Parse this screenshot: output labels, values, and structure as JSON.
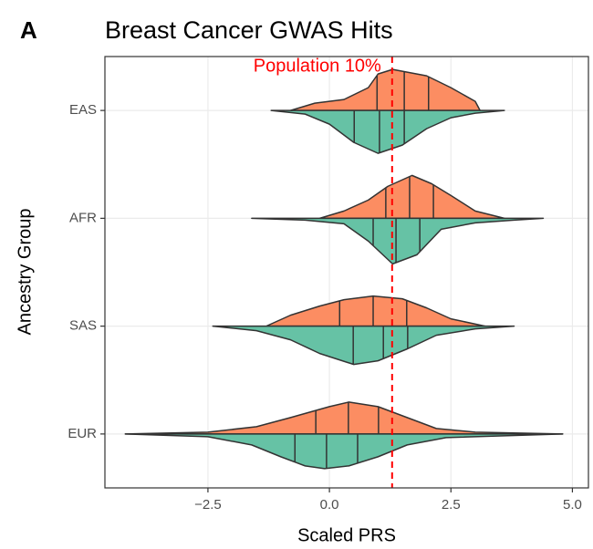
{
  "chart_data": {
    "type": "violin",
    "panel_label": "A",
    "title": "Breast Cancer GWAS Hits",
    "xlabel": "Scaled PRS",
    "ylabel": "Ancestry Group",
    "categories": [
      "EAS",
      "AFR",
      "SAS",
      "EUR"
    ],
    "xlim": [
      -4.62,
      5.33
    ],
    "xticks": [
      {
        "value": -2.5,
        "label": "−2.5"
      },
      {
        "value": 0,
        "label": "0.0"
      },
      2.5,
      {
        "value": 5,
        "label": "5.0"
      }
    ],
    "grid": true,
    "reference_line": {
      "value": 1.29,
      "label": "Population 10%",
      "color": "#ff0000"
    },
    "series": [
      {
        "color": "#fc8d62",
        "side": "upper",
        "groups": [
          {
            "x": [
              -0.8,
              -0.3,
              0.3,
              0.8,
              1.0,
              1.3,
              1.6,
              2.0,
              2.5,
              3.0,
              3.1
            ],
            "density": [
              0,
              8,
              12,
              25,
              40,
              45,
              42,
              38,
              25,
              10,
              0
            ],
            "quartiles": [
              0.98,
              1.54,
              2.04
            ]
          },
          {
            "x": [
              -0.2,
              0.3,
              0.8,
              1.2,
              1.7,
              2.1,
              2.5,
              3.0,
              3.6
            ],
            "density": [
              0,
              8,
              20,
              35,
              47,
              38,
              25,
              8,
              0
            ],
            "quartiles": [
              1.16,
              1.65,
              2.14
            ]
          },
          {
            "x": [
              -1.3,
              -0.8,
              -0.2,
              0.3,
              0.9,
              1.5,
              2.0,
              2.5,
              3.2
            ],
            "density": [
              0,
              12,
              22,
              29,
              33,
              30,
              20,
              8,
              0
            ],
            "quartiles": [
              0.21,
              0.9,
              1.59
            ]
          },
          {
            "x": [
              -4.2,
              -2.5,
              -1.5,
              -0.8,
              0,
              0.4,
              1.0,
              1.6,
              2.2,
              3.0,
              4.8
            ],
            "density": [
              0,
              2,
              8,
              18,
              30,
              35,
              30,
              18,
              6,
              2,
              0
            ],
            "quartiles": [
              -0.28,
              0.39,
              1.01
            ]
          }
        ]
      },
      {
        "color": "#66c2a5",
        "side": "lower",
        "groups": [
          {
            "x": [
              -1.2,
              -0.5,
              0,
              0.5,
              1.0,
              1.5,
              2.0,
              2.5,
              3.0,
              3.6
            ],
            "density": [
              0,
              4,
              15,
              35,
              47,
              38,
              20,
              8,
              3,
              0
            ],
            "quartiles": [
              0.51,
              1.03,
              1.54
            ]
          },
          {
            "x": [
              -1.6,
              -0.5,
              0.3,
              0.8,
              1.3,
              1.8,
              2.3,
              3.0,
              3.8,
              4.4
            ],
            "density": [
              0,
              2,
              6,
              25,
              50,
              40,
              12,
              5,
              2,
              0
            ],
            "quartiles": [
              0.9,
              1.37,
              1.86
            ]
          },
          {
            "x": [
              -2.4,
              -1.5,
              -0.8,
              -0.2,
              0.5,
              1.0,
              1.6,
              2.2,
              3.0,
              3.8
            ],
            "density": [
              0,
              5,
              15,
              30,
              42,
              38,
              25,
              10,
              3,
              0
            ],
            "quartiles": [
              0.49,
              1.11,
              1.61
            ]
          },
          {
            "x": [
              -4.2,
              -2.5,
              -1.6,
              -1.0,
              -0.5,
              -0.1,
              0.4,
              1.0,
              1.6,
              2.4,
              4.8
            ],
            "density": [
              0,
              3,
              12,
              25,
              35,
              38,
              35,
              25,
              12,
              4,
              0
            ],
            "quartiles": [
              -0.71,
              -0.06,
              0.58
            ]
          }
        ]
      }
    ]
  }
}
